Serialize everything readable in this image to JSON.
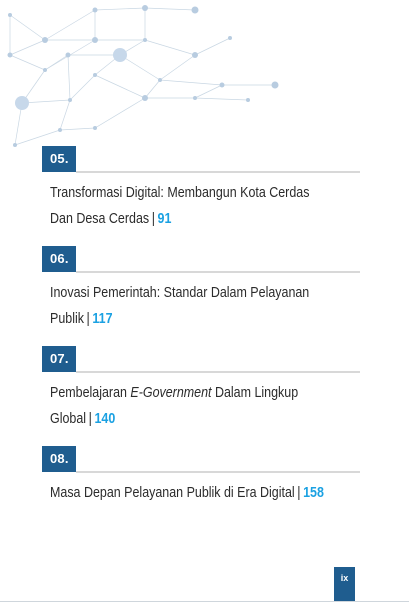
{
  "toc": {
    "entries": [
      {
        "number": "05.",
        "title_line1": "Transformasi Digital: Membangun Kota Cerdas",
        "title_line2": "Dan Desa Cerdas",
        "separator": "|",
        "page": "91"
      },
      {
        "number": "06.",
        "title_line1": "Inovasi Pemerintah: Standar Dalam Pelayanan",
        "title_line2": "Publik",
        "separator": "|",
        "page": "117"
      },
      {
        "number": "07.",
        "title_pre": "Pembelajaran ",
        "title_italic": "E-Government",
        "title_post": " Dalam Lingkup",
        "title_line2": "Global",
        "separator": "|",
        "page": "140"
      },
      {
        "number": "08.",
        "title_line1": "Masa Depan Pelayanan Publik di Era Digital",
        "separator": "|",
        "page": "158"
      }
    ]
  },
  "folio": "ix",
  "colors": {
    "accent_dark": "#1f5d8f",
    "accent_light": "#1ba1e2",
    "text": "#2b2b2b"
  }
}
